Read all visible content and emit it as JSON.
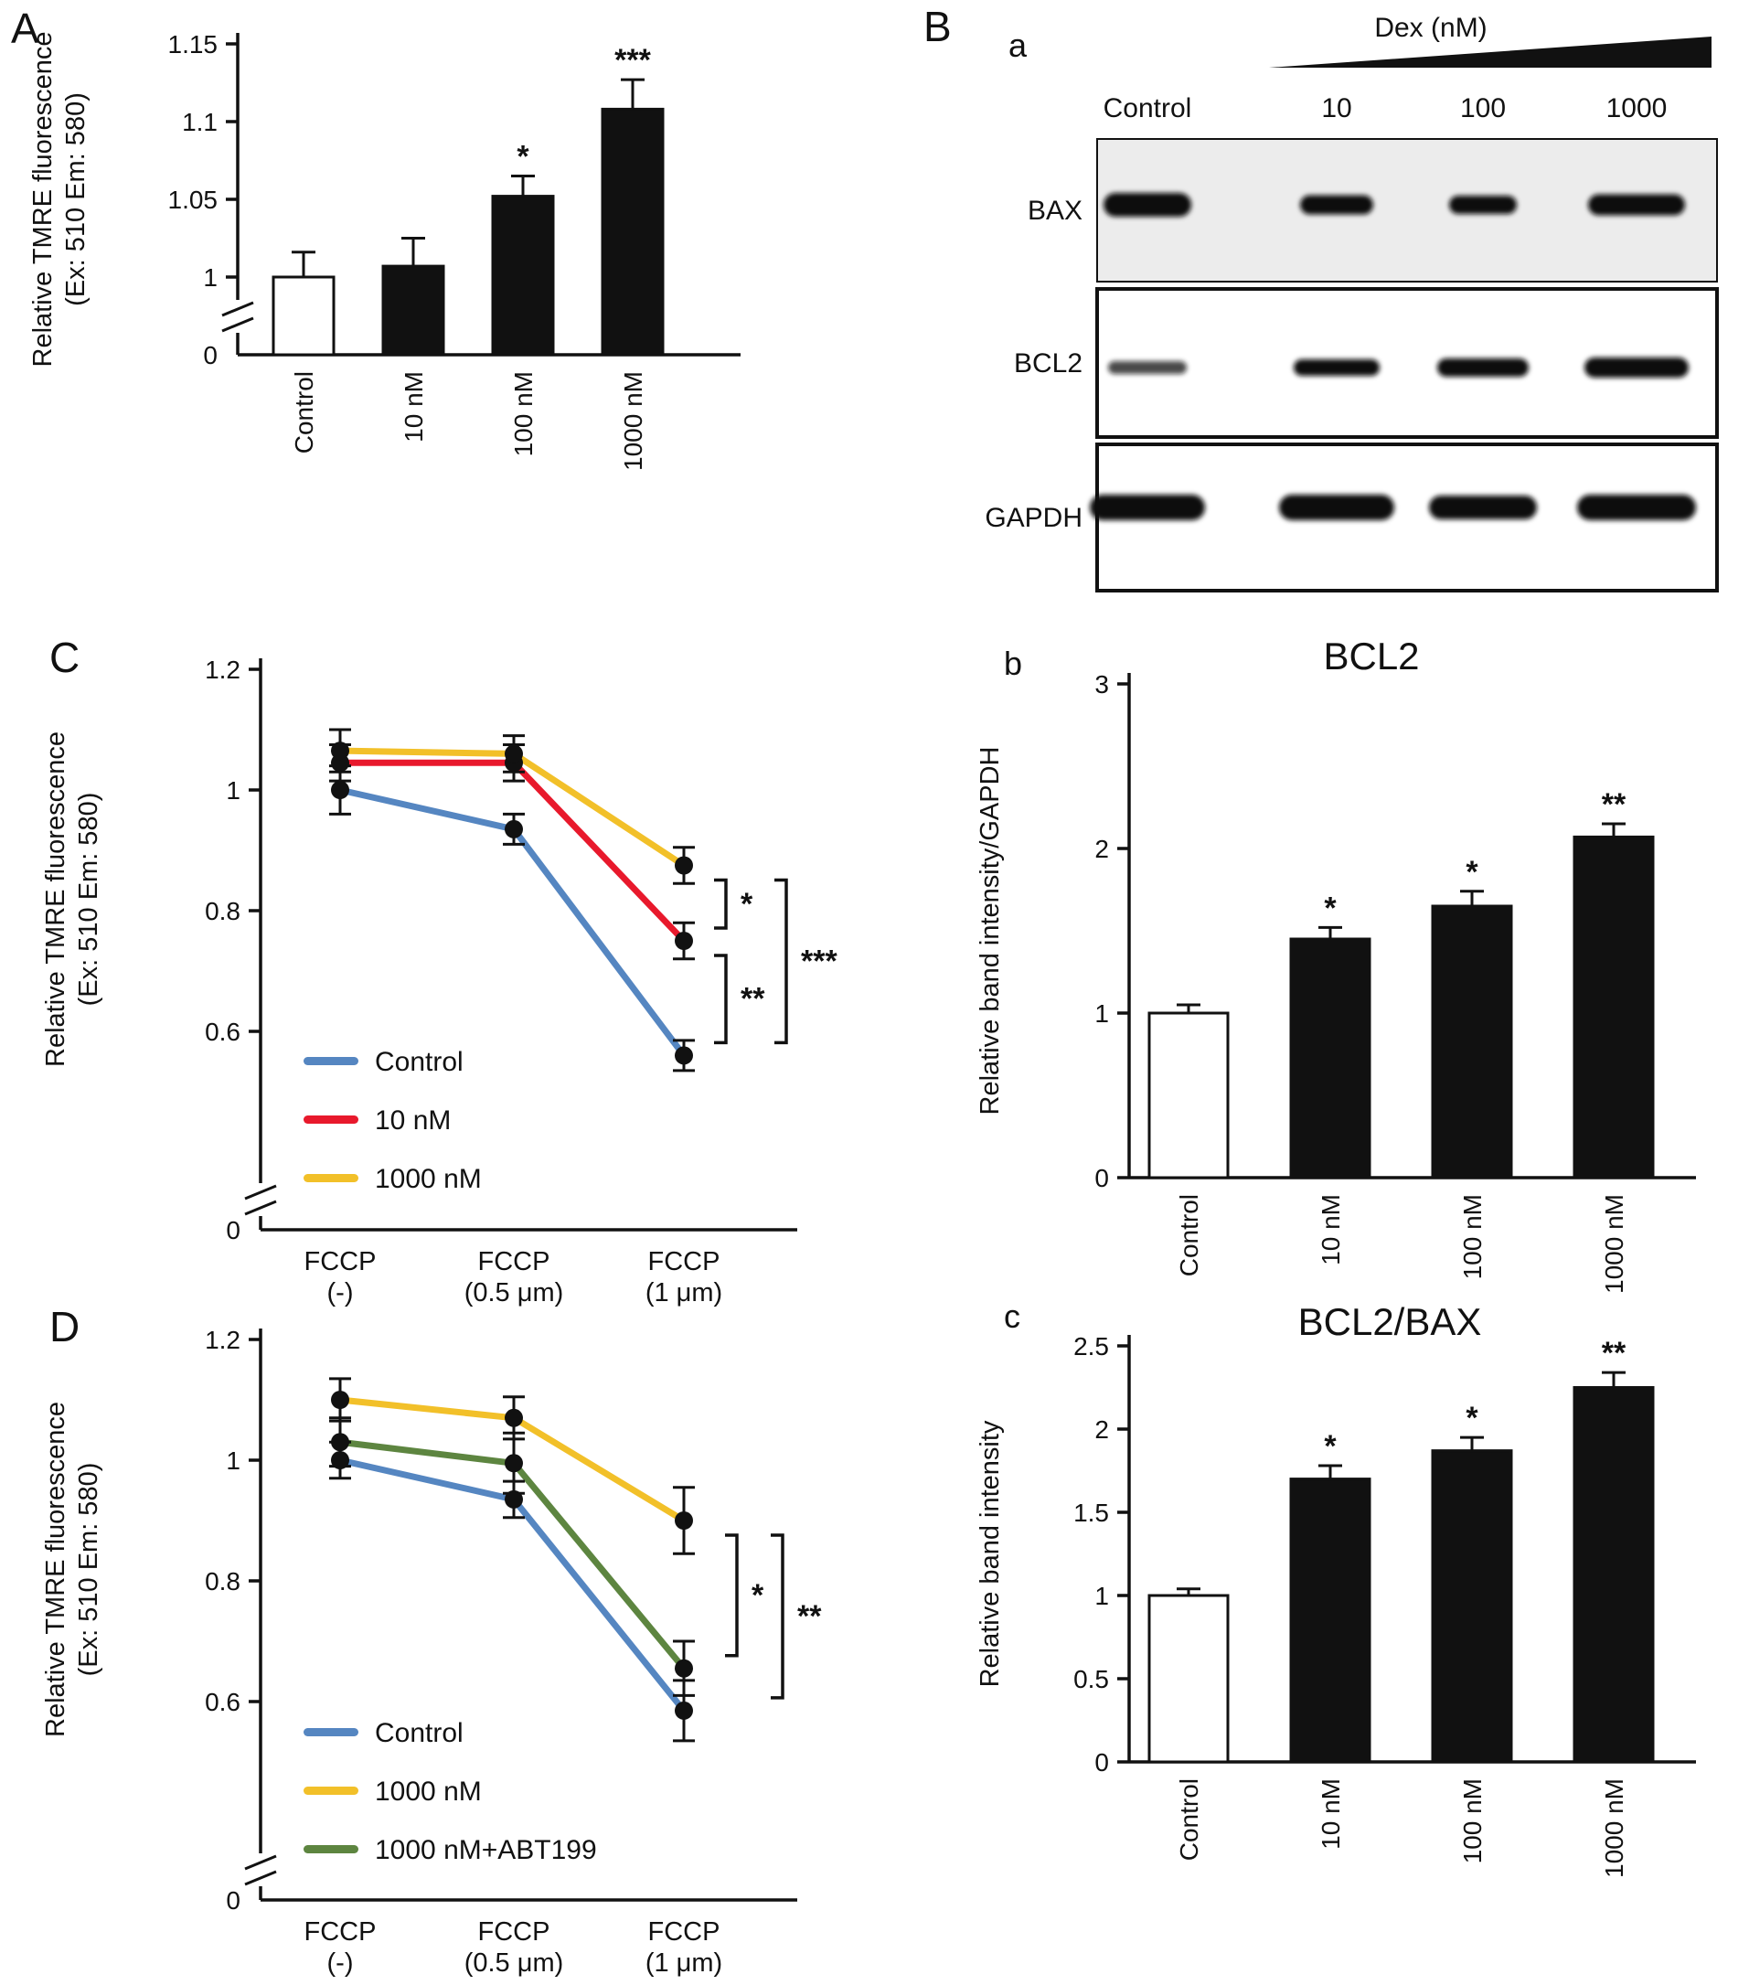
{
  "chart_data": [
    {
      "id": "A",
      "type": "bar",
      "panel_label": "A",
      "ylabel_lines": [
        "Relative TMRE fluorescence",
        "(Ex: 510 Em: 580)"
      ],
      "categories": [
        "Control",
        "10 nM",
        "100 nM",
        "1000 nM"
      ],
      "values": [
        1.0,
        1.007,
        1.052,
        1.108
      ],
      "errors": [
        0.016,
        0.018,
        0.013,
        0.019
      ],
      "significance": [
        "",
        "",
        "*",
        "***"
      ],
      "bar_fills": [
        "#ffffff",
        "#111111",
        "#111111",
        "#111111"
      ],
      "yticks": [
        1,
        1.05,
        1.1,
        1.15
      ],
      "ylim": [
        0,
        1.15
      ],
      "axis_break": true,
      "zero_label": "0"
    },
    {
      "id": "B_blots",
      "type": "western_blot",
      "panel_label": "B",
      "sub_label": "a",
      "treatment_label": "Dex (nM)",
      "lane_labels": [
        "Control",
        "10",
        "100",
        "1000"
      ],
      "rows": [
        {
          "protein": "BAX",
          "bands": [
            {
              "w": 96,
              "h": 26
            },
            {
              "w": 80,
              "h": 21
            },
            {
              "w": 74,
              "h": 20
            },
            {
              "w": 106,
              "h": 23
            }
          ]
        },
        {
          "protein": "BCL2",
          "bands": [
            {
              "w": 86,
              "h": 14,
              "o": 0.75
            },
            {
              "w": 94,
              "h": 18
            },
            {
              "w": 100,
              "h": 20
            },
            {
              "w": 114,
              "h": 22
            }
          ]
        },
        {
          "protein": "GAPDH",
          "bands": [
            {
              "w": 126,
              "h": 28
            },
            {
              "w": 126,
              "h": 28
            },
            {
              "w": 118,
              "h": 26
            },
            {
              "w": 130,
              "h": 28
            }
          ]
        }
      ]
    },
    {
      "id": "B_b",
      "type": "bar",
      "sub_label": "b",
      "title": "BCL2",
      "ylabel_lines": [
        "Relative band intensity/GAPDH"
      ],
      "categories": [
        "Control",
        "10 nM",
        "100 nM",
        "1000 nM"
      ],
      "values": [
        1.0,
        1.45,
        1.65,
        2.07
      ],
      "errors": [
        0.05,
        0.07,
        0.09,
        0.08
      ],
      "significance": [
        "",
        "*",
        "*",
        "**"
      ],
      "bar_fills": [
        "#ffffff",
        "#111111",
        "#111111",
        "#111111"
      ],
      "yticks": [
        0,
        1,
        2,
        3
      ],
      "ylim": [
        0,
        3
      ],
      "axis_break": false
    },
    {
      "id": "B_c",
      "type": "bar",
      "sub_label": "c",
      "title": "BCL2/BAX",
      "ylabel_lines": [
        "Relative band intensity"
      ],
      "categories": [
        "Control",
        "10 nM",
        "100 nM",
        "1000 nM"
      ],
      "values": [
        1.0,
        1.7,
        1.87,
        2.25
      ],
      "errors": [
        0.04,
        0.08,
        0.08,
        0.09
      ],
      "significance": [
        "",
        "*",
        "*",
        "**"
      ],
      "bar_fills": [
        "#ffffff",
        "#111111",
        "#111111",
        "#111111"
      ],
      "yticks": [
        0,
        0.5,
        1,
        1.5,
        2,
        2.5
      ],
      "ylim": [
        0,
        2.5
      ],
      "axis_break": false
    },
    {
      "id": "C",
      "type": "line",
      "panel_label": "C",
      "ylabel_lines": [
        "Relative TMRE fluorescence",
        "(Ex: 510 Em: 580)"
      ],
      "categories": [
        "FCCP\n(-)",
        "FCCP\n(0.5 μm)",
        "FCCP\n(1 μm)"
      ],
      "series": [
        {
          "name": "Control",
          "color": "#5586c1",
          "values": [
            1.0,
            0.935,
            0.56
          ],
          "errors": [
            0.04,
            0.025,
            0.025
          ]
        },
        {
          "name": "10 nM",
          "color": "#e8192c",
          "values": [
            1.045,
            1.045,
            0.75
          ],
          "errors": [
            0.03,
            0.03,
            0.03
          ]
        },
        {
          "name": "1000 nM",
          "color": "#f2c029",
          "values": [
            1.065,
            1.06,
            0.875
          ],
          "errors": [
            0.035,
            0.03,
            0.03
          ]
        }
      ],
      "yticks": [
        0.6,
        0.8,
        1,
        1.2
      ],
      "ylim": [
        0,
        1.2
      ],
      "axis_break": true,
      "zero_label": "0",
      "brackets": [
        {
          "upper": "1000 nM",
          "lower": "10 nM",
          "label": "*"
        },
        {
          "upper": "10 nM",
          "lower": "Control",
          "label": "**"
        },
        {
          "upper": "1000 nM",
          "lower": "Control",
          "label": "***"
        }
      ]
    },
    {
      "id": "D",
      "type": "line",
      "panel_label": "D",
      "ylabel_lines": [
        "Relative TMRE fluorescence",
        "(Ex: 510 Em: 580)"
      ],
      "categories": [
        "FCCP\n(-)",
        "FCCP\n(0.5 μm)",
        "FCCP\n(1 μm)"
      ],
      "series": [
        {
          "name": "Control",
          "color": "#5586c1",
          "values": [
            1.0,
            0.935,
            0.585
          ],
          "errors": [
            0.03,
            0.03,
            0.05
          ]
        },
        {
          "name": "1000 nM",
          "color": "#f2c029",
          "values": [
            1.1,
            1.07,
            0.9
          ],
          "errors": [
            0.035,
            0.035,
            0.055
          ]
        },
        {
          "name": "1000 nM+ABT199",
          "color": "#5d8540",
          "values": [
            1.03,
            0.995,
            0.655
          ],
          "errors": [
            0.04,
            0.05,
            0.045
          ]
        }
      ],
      "yticks": [
        0.6,
        0.8,
        1,
        1.2
      ],
      "ylim": [
        0,
        1.2
      ],
      "axis_break": true,
      "zero_label": "0",
      "brackets": [
        {
          "upper": "1000 nM",
          "lower": "1000 nM+ABT199",
          "label": "*"
        },
        {
          "upper": "1000 nM",
          "lower": "Control",
          "label": "**"
        }
      ]
    }
  ]
}
